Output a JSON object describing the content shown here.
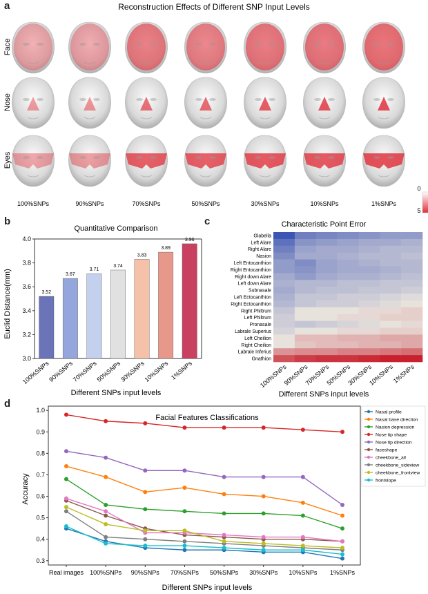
{
  "panel_a": {
    "label": "a",
    "title": "Reconstruction Effects of Different SNP Input Levels",
    "rows": [
      "Face",
      "Nose",
      "Eyes"
    ],
    "columns": [
      "100%SNPs",
      "90%SNPs",
      "70%SNPs",
      "50%SNPs",
      "30%SNPs",
      "10%SNPs",
      "1%SNPs"
    ],
    "intensity": {
      "Face": [
        0.35,
        0.4,
        0.75,
        0.7,
        0.78,
        0.8,
        0.85
      ],
      "Nose": [
        0.3,
        0.35,
        0.6,
        0.65,
        0.75,
        0.8,
        0.85
      ],
      "Eyes": [
        0.3,
        0.35,
        0.8,
        0.8,
        0.85,
        0.85,
        0.9
      ]
    },
    "colorbar": {
      "min_label": "0",
      "max_label": "5",
      "low_color": "#ffffff",
      "high_color": "#e0303a"
    }
  },
  "panel_b": {
    "label": "b"
  },
  "panel_c": {
    "label": "c"
  },
  "panel_d": {
    "label": "d"
  },
  "chart_data": [
    {
      "id": "b",
      "type": "bar",
      "title": "Quantitative Comparison",
      "xlabel": "Different SNPs input levels",
      "ylabel": "Euclid Distance(mm)",
      "categories": [
        "100%SNPs",
        "90%SNPs",
        "70%SNPs",
        "50%SNPs",
        "30%SNPs",
        "10%SNPs",
        "1%SNPs"
      ],
      "values": [
        3.52,
        3.67,
        3.71,
        3.74,
        3.83,
        3.89,
        3.96
      ],
      "value_labels": [
        "3.52",
        "3.67",
        "3.71",
        "3.74",
        "3.83",
        "3.89",
        "3.96"
      ],
      "ylim": [
        3.0,
        4.0
      ],
      "yticks": [
        "3.0",
        "3.2",
        "3.4",
        "3.6",
        "3.8",
        "4.0"
      ],
      "colors": [
        "#6b74b8",
        "#95a6dc",
        "#c3d1ef",
        "#e1e1e1",
        "#f5c1a9",
        "#e8988a",
        "#c94160"
      ],
      "grid": false
    },
    {
      "id": "c",
      "type": "heatmap",
      "title": "Characteristic Point Error",
      "xlabel": "Different SNPs input levels",
      "x_categories": [
        "100%SNPs",
        "90%SNPs",
        "70%SNPs",
        "50%SNPs",
        "30%SNPs",
        "10%SNPs",
        "1%SNPs"
      ],
      "y_categories": [
        "Glabella",
        "Left Alare",
        "Right Alare",
        "Nasion",
        "Left Entocanthion",
        "Right Entocanthion",
        "Right down Alare",
        "Left down Alare",
        "Subnasale",
        "Left Ectocanthion",
        "Right Ectocanthion",
        "Right Philtrum",
        "Left Philtrum",
        "Pronasale",
        "Labrale Superius",
        "Left Cheilion",
        "Right Cheilion",
        "Labrale Inferius",
        "Gnathion"
      ],
      "values": [
        [
          1.0,
          1.6,
          1.7,
          1.8,
          1.9,
          2.0,
          2.0
        ],
        [
          1.4,
          1.9,
          2.0,
          2.1,
          2.2,
          2.2,
          2.3
        ],
        [
          1.6,
          2.1,
          2.2,
          2.2,
          2.3,
          2.4,
          2.4
        ],
        [
          1.8,
          2.2,
          2.2,
          2.3,
          2.4,
          2.4,
          2.5
        ],
        [
          2.0,
          1.8,
          2.1,
          2.2,
          2.3,
          2.4,
          2.4
        ],
        [
          2.0,
          1.9,
          2.1,
          2.2,
          2.2,
          2.3,
          2.4
        ],
        [
          2.2,
          2.0,
          2.2,
          2.3,
          2.3,
          2.4,
          2.5
        ],
        [
          2.3,
          2.4,
          2.4,
          2.5,
          2.5,
          2.6,
          2.6
        ],
        [
          2.2,
          2.4,
          2.5,
          2.5,
          2.6,
          2.6,
          2.7
        ],
        [
          2.3,
          2.6,
          2.6,
          2.7,
          2.7,
          2.8,
          2.9
        ],
        [
          2.4,
          2.6,
          2.7,
          2.7,
          2.8,
          2.9,
          3.0
        ],
        [
          2.6,
          3.0,
          3.0,
          3.0,
          3.1,
          3.1,
          3.2
        ],
        [
          2.7,
          3.0,
          3.0,
          3.1,
          3.1,
          3.2,
          3.2
        ],
        [
          2.7,
          2.6,
          2.7,
          2.8,
          2.9,
          3.0,
          3.1
        ],
        [
          2.8,
          3.0,
          3.0,
          3.1,
          3.1,
          3.2,
          3.2
        ],
        [
          3.0,
          3.4,
          3.4,
          3.5,
          3.5,
          3.6,
          3.6
        ],
        [
          3.0,
          3.3,
          3.4,
          3.4,
          3.5,
          3.5,
          3.6
        ],
        [
          3.8,
          3.9,
          3.9,
          4.0,
          4.0,
          4.1,
          4.2
        ],
        [
          4.5,
          4.7,
          4.8,
          4.8,
          4.9,
          5.0,
          5.0
        ]
      ],
      "color_low": "#3b55b4",
      "color_mid": "#e8e2dd",
      "color_high": "#c8202c",
      "vmin": 1.0,
      "vmax": 5.0
    },
    {
      "id": "d",
      "type": "line",
      "title": "Facial Features Classifications",
      "xlabel": "Different SNPs input levels",
      "ylabel": "Accuracy",
      "categories": [
        "Real images",
        "100%SNPs",
        "90%SNPs",
        "70%SNPs",
        "50%SNPs",
        "30%SNPs",
        "10%SNPs",
        "1%SNPs"
      ],
      "ylim": [
        0.28,
        1.02
      ],
      "yticks": [
        "0.3",
        "0.4",
        "0.5",
        "0.6",
        "0.7",
        "0.8",
        "0.9",
        "1.0"
      ],
      "legend_position": "right",
      "series": [
        {
          "name": "Nasal profile",
          "color": "#1f77b4",
          "values": [
            0.45,
            0.39,
            0.36,
            0.35,
            0.35,
            0.34,
            0.34,
            0.31
          ]
        },
        {
          "name": "Nasal base direction",
          "color": "#ff7f0e",
          "values": [
            0.74,
            0.69,
            0.62,
            0.64,
            0.61,
            0.6,
            0.57,
            0.51
          ]
        },
        {
          "name": "Nasion depression",
          "color": "#2ca02c",
          "values": [
            0.68,
            0.56,
            0.54,
            0.53,
            0.52,
            0.52,
            0.51,
            0.45
          ]
        },
        {
          "name": "Nose tip shape",
          "color": "#d62728",
          "values": [
            0.98,
            0.95,
            0.94,
            0.92,
            0.92,
            0.92,
            0.91,
            0.9
          ]
        },
        {
          "name": "Nose tip direction",
          "color": "#9467bd",
          "values": [
            0.81,
            0.78,
            0.72,
            0.72,
            0.69,
            0.69,
            0.69,
            0.56
          ]
        },
        {
          "name": "faceshape",
          "color": "#8c564b",
          "values": [
            0.58,
            0.51,
            0.45,
            0.42,
            0.41,
            0.4,
            0.4,
            0.39
          ]
        },
        {
          "name": "cheekbone_all",
          "color": "#e377c2",
          "values": [
            0.59,
            0.53,
            0.43,
            0.43,
            0.42,
            0.41,
            0.41,
            0.39
          ]
        },
        {
          "name": "cheekbone_sideview",
          "color": "#7f7f7f",
          "values": [
            0.53,
            0.41,
            0.4,
            0.39,
            0.38,
            0.37,
            0.36,
            0.35
          ]
        },
        {
          "name": "cheekbone_frontview",
          "color": "#bcbd22",
          "values": [
            0.55,
            0.47,
            0.44,
            0.44,
            0.39,
            0.38,
            0.37,
            0.36
          ]
        },
        {
          "name": "frontslope",
          "color": "#17becf",
          "values": [
            0.46,
            0.38,
            0.37,
            0.37,
            0.36,
            0.35,
            0.35,
            0.33
          ]
        }
      ]
    }
  ]
}
